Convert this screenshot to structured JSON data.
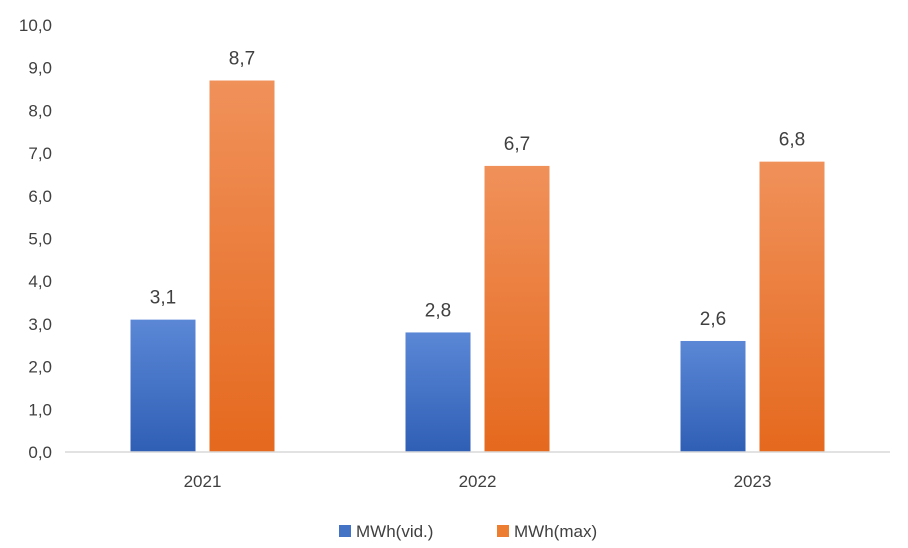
{
  "chart_data": {
    "type": "bar",
    "categories": [
      "2021",
      "2022",
      "2023"
    ],
    "series": [
      {
        "name": "MWh(vid.)",
        "values": [
          3.1,
          2.8,
          2.6
        ],
        "color": "#4472C4"
      },
      {
        "name": "MWh(max)",
        "values": [
          8.7,
          6.7,
          6.8
        ],
        "color": "#ED7D31"
      }
    ],
    "ylim": [
      0,
      10
    ],
    "yticks": [
      "0,0",
      "1,0",
      "2,0",
      "3,0",
      "4,0",
      "5,0",
      "6,0",
      "7,0",
      "8,0",
      "9,0",
      "10,0"
    ],
    "data_labels": [
      [
        "3,1",
        "2,8",
        "2,6"
      ],
      [
        "8,7",
        "6,7",
        "6,8"
      ]
    ],
    "grid": false,
    "legend_position": "bottom",
    "title": "",
    "xlabel": "",
    "ylabel": ""
  }
}
